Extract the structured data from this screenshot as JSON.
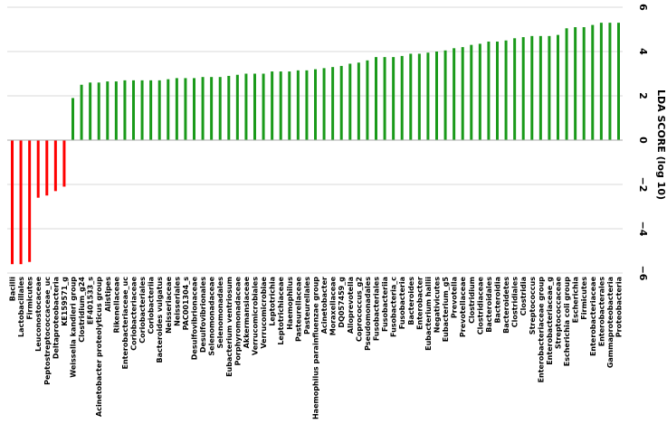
{
  "chart_data": {
    "type": "bar",
    "orientation": "vertical",
    "title": "",
    "xlabel": "",
    "ylabel": "LDA SCORE (log 10)",
    "ylim": [
      -6,
      6
    ],
    "yticks": [
      6,
      4,
      2,
      0,
      -2,
      -4,
      -6
    ],
    "y_axis_position": "right",
    "grid": true,
    "colors": {
      "negative": "#ff0000",
      "positive": "#1a9a1a",
      "grid": "#d9d9d9"
    },
    "categories": [
      "Bacilli",
      "Lactobacillales",
      "Firmicutes",
      "Leuconostocaceae",
      "Peptostreptococcaceae_uc",
      "Deltaproteobacteria",
      "KE159571_g",
      "Weissella kandleri group",
      "Clostridium_g24",
      "EF401533_s",
      "Acinetobacter proteolyticus group",
      "Alistipes",
      "Rikenellaceae",
      "Enterobacteriaceae_uc",
      "Coriobacteriaceae",
      "Coriobacteriales",
      "Coriobacteriia",
      "Bacteroides vulgatus",
      "Neisseriaceae",
      "Neisseriales",
      "PAC001304_s",
      "Desulfovibrionaceae",
      "Desulfovibrionales",
      "Selenomonadaceae",
      "Selenomonadales",
      "Eubacterium ventriosum",
      "Porphyromonadaceae",
      "Akkermansiaceae",
      "Verrucomicrobiales",
      "Verrucomicrobiae",
      "Leptotrichia",
      "Leptotrichiaceae",
      "Haemophilus",
      "Pasteurellaceae",
      "Pasteurellales",
      "Haemophilus parainfluenzae group",
      "Acinetobacter",
      "Moraxellaceae",
      "DQ057459_g",
      "Alloprevotella",
      "Coprococcus_g2",
      "Pseudomonadales",
      "Fusobacteriales",
      "Fusobacteriia",
      "Fusobacteria_c",
      "Fusobacteria",
      "Bacteroides",
      "Enterobacter",
      "Eubacterium hallii",
      "Negativicutes",
      "Eubacterium_g5",
      "Prevotella",
      "Prevotellaceae",
      "Clostridium",
      "Clostridiaceae",
      "Bacteroidales",
      "Bacteroidia",
      "Bacteroidetes",
      "Clostridiales",
      "Clostridia",
      "Streptococcus",
      "Enterobacteriaceae group",
      "Enterobacteriaceae_g",
      "Streptococcaceae",
      "Escherichia coli group",
      "Escherichia",
      "Firmicutes",
      "Enterobacteriaceae",
      "Enterobacterales",
      "Gammaproteobacteria",
      "Proteobacteria"
    ],
    "values": [
      -5.6,
      -5.6,
      -5.5,
      -2.6,
      -2.5,
      -2.3,
      -2.1,
      1.9,
      2.5,
      2.6,
      2.6,
      2.65,
      2.65,
      2.7,
      2.7,
      2.7,
      2.7,
      2.7,
      2.75,
      2.8,
      2.8,
      2.8,
      2.85,
      2.85,
      2.85,
      2.9,
      2.95,
      3.0,
      3.0,
      3.0,
      3.1,
      3.1,
      3.1,
      3.15,
      3.15,
      3.2,
      3.25,
      3.3,
      3.35,
      3.45,
      3.5,
      3.6,
      3.75,
      3.75,
      3.75,
      3.8,
      3.9,
      3.9,
      3.95,
      4.0,
      4.05,
      4.15,
      4.2,
      4.3,
      4.35,
      4.45,
      4.45,
      4.5,
      4.6,
      4.65,
      4.7,
      4.7,
      4.7,
      4.75,
      5.05,
      5.1,
      5.1,
      5.2,
      5.3,
      5.3,
      5.3
    ]
  }
}
